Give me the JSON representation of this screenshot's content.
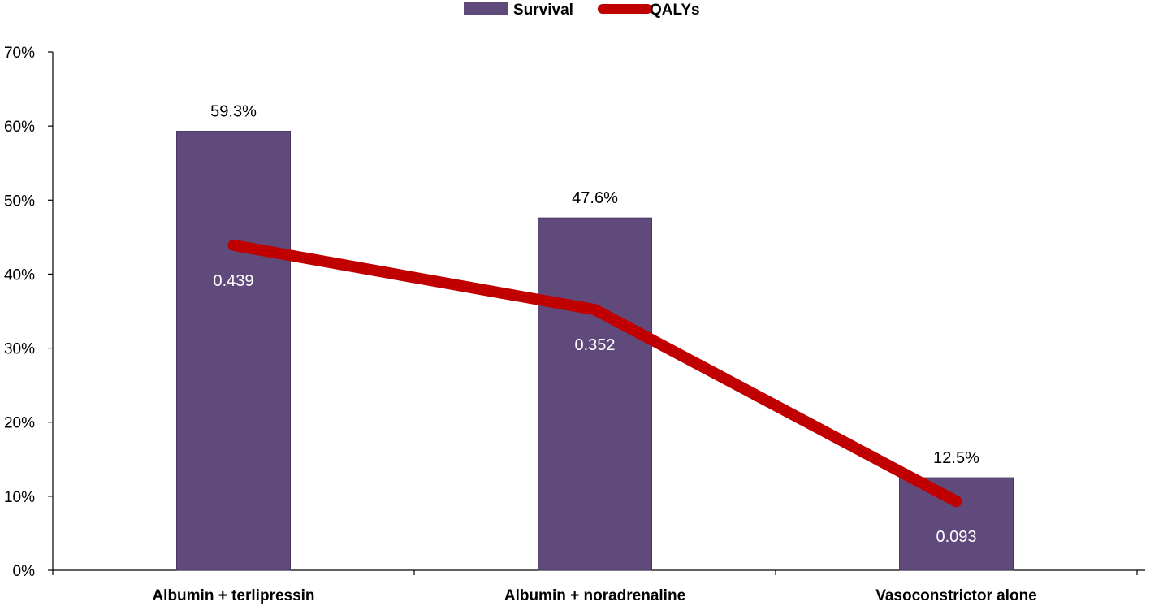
{
  "chart_data": {
    "type": "bar",
    "title": "",
    "xlabel": "",
    "ylabel": "",
    "categories": [
      "Albumin + terlipressin",
      "Albumin + noradrenaline",
      "Vasoconstrictor alone"
    ],
    "ylim": [
      0,
      70
    ],
    "yticks": [
      0,
      10,
      20,
      30,
      40,
      50,
      60,
      70
    ],
    "ytick_labels": [
      "0%",
      "10%",
      "20%",
      "30%",
      "40%",
      "50%",
      "60%",
      "70%"
    ],
    "grid": false,
    "legend": {
      "position": "top-center"
    },
    "series": [
      {
        "name": "Survival",
        "type": "bar",
        "values": [
          59.3,
          47.6,
          12.5
        ],
        "labels": [
          "59.3%",
          "47.6%",
          "12.5%"
        ],
        "color": "#604a7b"
      },
      {
        "name": "QALYs",
        "type": "line",
        "values": [
          0.439,
          0.352,
          0.093
        ],
        "labels": [
          "0.439",
          "0.352",
          "0.093"
        ],
        "color": "#c00000"
      }
    ]
  }
}
